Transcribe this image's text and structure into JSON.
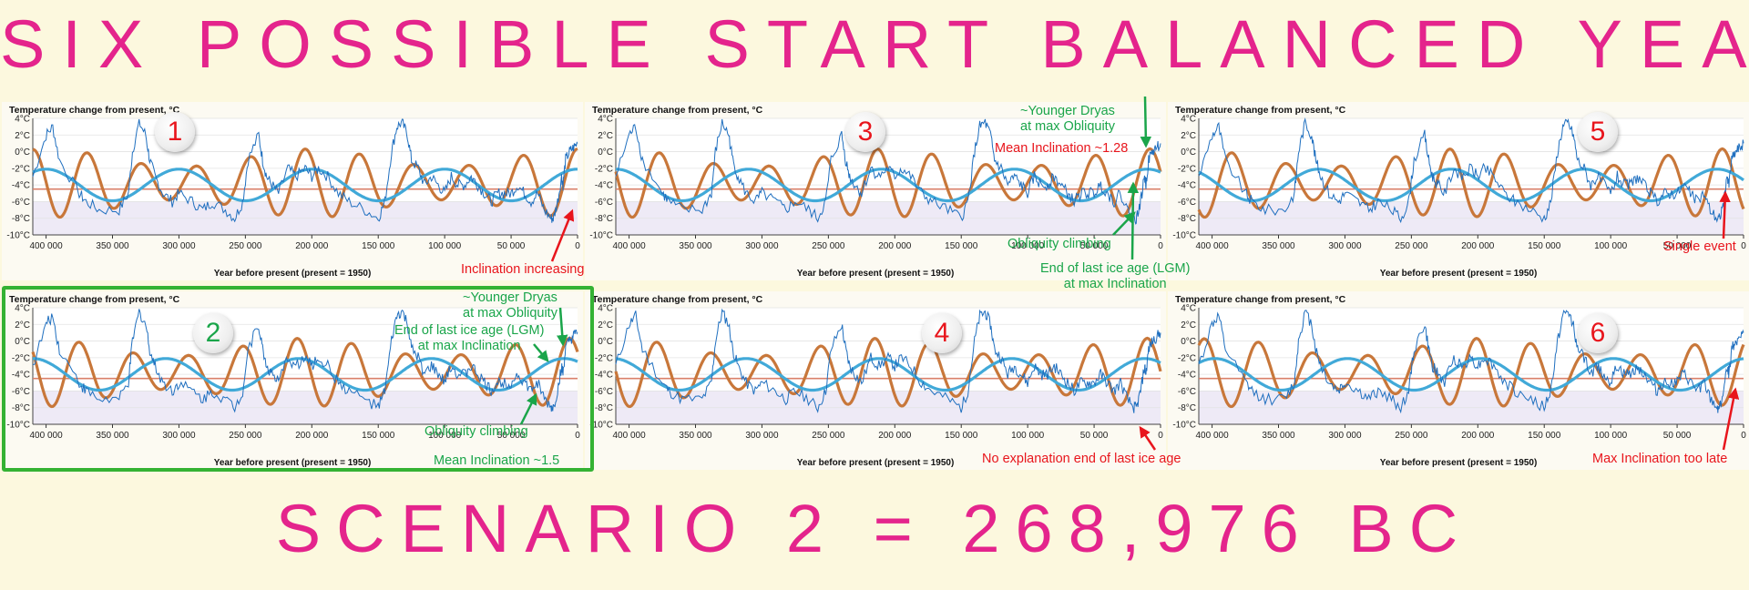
{
  "title": "SIX POSSIBLE START BALANCED YEAR",
  "subtitle": "SCENARIO 2 = 268,976 BC",
  "colors": {
    "headline": "#e4248c",
    "temperature": "#1f6fbf",
    "obliquity": "#41a9d8",
    "inclination": "#c8773a",
    "mean_line": "#d9806a",
    "highlight": "#34b233",
    "note_red": "#e8151c",
    "note_green": "#1aa54a"
  },
  "chart_data": [
    {
      "type": "line",
      "panel": 1,
      "badge": "1",
      "badge_color": "#e8151c",
      "title": "Temperature change from present, °C",
      "xlabel": "Year before present (present = 1950)",
      "xlim": [
        410000,
        0
      ],
      "ylim": [
        -10,
        4
      ],
      "x_ticks": [
        "400 000",
        "350 000",
        "300 000",
        "250 000",
        "200 000",
        "150 000",
        "100 000",
        "50 000",
        "0"
      ],
      "y_ticks": [
        "4°C",
        "2°C",
        "0°C",
        "-2°C",
        "-4°C",
        "-6°C",
        "-8°C",
        "-10°C"
      ],
      "obliquity_phase_years": 0,
      "inclination_phase_years": 0,
      "annotations": [
        {
          "text": "Inclination increasing",
          "color": "red"
        }
      ]
    },
    {
      "type": "line",
      "panel": 3,
      "badge": "3",
      "badge_color": "#e8151c",
      "title": "Temperature change from present, °C",
      "xlabel": "Year before present (present = 1950)",
      "xlim": [
        410000,
        0
      ],
      "ylim": [
        -10,
        4
      ],
      "x_ticks": [
        "400 000",
        "350 000",
        "300 000",
        "250 000",
        "200 000",
        "150 000",
        "100 000",
        "50 000",
        "0"
      ],
      "y_ticks": [
        "4°C",
        "2°C",
        "0°C",
        "-2°C",
        "-4°C",
        "-6°C",
        "-8°C",
        "-10°C"
      ],
      "obliquity_phase_years": 10000,
      "inclination_phase_years": 8000,
      "annotations": [
        {
          "text": "~Younger Dryas\nat max Obliquity",
          "color": "green"
        },
        {
          "text": "Mean Inclination ~1.28",
          "color": "red"
        },
        {
          "text": "Obliquity climbing",
          "color": "green"
        },
        {
          "text": "End of last ice age (LGM)\nat max Inclination",
          "color": "green"
        }
      ]
    },
    {
      "type": "line",
      "panel": 5,
      "badge": "5",
      "badge_color": "#e8151c",
      "title": "Temperature change from present, °C",
      "xlabel": "Year before present (present = 1950)",
      "xlim": [
        410000,
        0
      ],
      "ylim": [
        -10,
        4
      ],
      "x_ticks": [
        "400 000",
        "350 000",
        "300 000",
        "250 000",
        "200 000",
        "150 000",
        "100 000",
        "50 000",
        "0"
      ],
      "y_ticks": [
        "4°C",
        "2°C",
        "0°C",
        "-2°C",
        "-4°C",
        "-6°C",
        "-8°C",
        "-10°C"
      ],
      "obliquity_phase_years": 20000,
      "inclination_phase_years": 16000,
      "annotations": [
        {
          "text": "Single event",
          "color": "red"
        }
      ]
    },
    {
      "type": "line",
      "panel": 2,
      "badge": "2",
      "badge_color": "#1aa54a",
      "title": "Temperature change from present, °C",
      "xlabel": "Year before present (present = 1950)",
      "xlim": [
        410000,
        0
      ],
      "ylim": [
        -10,
        4
      ],
      "x_ticks": [
        "400 000",
        "350 000",
        "300 000",
        "250 000",
        "200 000",
        "150 000",
        "100 000",
        "50 000",
        "0"
      ],
      "y_ticks": [
        "4°C",
        "2°C",
        "0°C",
        "-2°C",
        "-4°C",
        "-6°C",
        "-8°C",
        "-10°C"
      ],
      "obliquity_phase_years": 10000,
      "inclination_phase_years": 6000,
      "annotations": [
        {
          "text": "~Younger Dryas\nat max Obliquity",
          "color": "green"
        },
        {
          "text": "End of last ice age (LGM)\nat max Inclination",
          "color": "green"
        },
        {
          "text": "Obliquity climbing",
          "color": "green"
        },
        {
          "text": "Mean Inclination ~1.5",
          "color": "green"
        }
      ]
    },
    {
      "type": "line",
      "panel": 4,
      "badge": "4",
      "badge_color": "#e8151c",
      "title": "Temperature change from present, °C",
      "xlabel": "Year before present (present = 1950)",
      "xlim": [
        410000,
        0
      ],
      "ylim": [
        -10,
        4
      ],
      "x_ticks": [
        "400 000",
        "350 000",
        "300 000",
        "250 000",
        "200 000",
        "150 000",
        "100 000",
        "50 000",
        "0"
      ],
      "y_ticks": [
        "4°C",
        "2°C",
        "0°C",
        "-2°C",
        "-4°C",
        "-6°C",
        "-8°C",
        "-10°C"
      ],
      "obliquity_phase_years": 12000,
      "inclination_phase_years": 10000,
      "annotations": [
        {
          "text": "No explanation end of last ice age",
          "color": "red"
        }
      ]
    },
    {
      "type": "line",
      "panel": 6,
      "badge": "6",
      "badge_color": "#e8151c",
      "title": "Temperature change from present, °C",
      "xlabel": "Year before present (present = 1950)",
      "xlim": [
        410000,
        0
      ],
      "ylim": [
        -10,
        4
      ],
      "x_ticks": [
        "400 000",
        "350 000",
        "300 000",
        "250 000",
        "200 000",
        "150 000",
        "100 000",
        "50 000",
        "0"
      ],
      "y_ticks": [
        "4°C",
        "2°C",
        "0°C",
        "-2°C",
        "-4°C",
        "-6°C",
        "-8°C",
        "-10°C"
      ],
      "obliquity_phase_years": -2000,
      "inclination_phase_years": -4000,
      "annotations": [
        {
          "text": "Max Inclination too late",
          "color": "red"
        }
      ]
    }
  ],
  "shared_series": {
    "temperature_anomaly_c": {
      "x": [
        410000,
        400000,
        395000,
        390000,
        375000,
        370000,
        360000,
        345000,
        338000,
        335000,
        330000,
        325000,
        322000,
        318000,
        312000,
        305000,
        300000,
        290000,
        282000,
        275000,
        265000,
        258000,
        252000,
        248000,
        240000,
        237000,
        234000,
        230000,
        225000,
        218000,
        212000,
        205000,
        200000,
        195000,
        188000,
        180000,
        172000,
        160000,
        150000,
        145000,
        140000,
        136000,
        132000,
        128000,
        125000,
        120000,
        115000,
        110000,
        105000,
        100000,
        95000,
        90000,
        85000,
        80000,
        75000,
        70000,
        65000,
        60000,
        55000,
        50000,
        45000,
        40000,
        35000,
        30000,
        25000,
        20000,
        18000,
        15000,
        12000,
        11000,
        9000,
        6000,
        3000,
        0
      ],
      "y": [
        -3,
        2,
        3,
        -1,
        -5,
        -6,
        -7,
        -7,
        -5,
        0,
        3.5,
        2,
        -1,
        -3,
        -5,
        -6,
        -5,
        -6,
        -7,
        -6,
        -7,
        -8,
        -6,
        -1,
        2,
        -1,
        -3,
        -4,
        -5,
        -2,
        -3,
        -2,
        -3,
        -2,
        -3,
        -5,
        -6,
        -7,
        -8,
        -6,
        0,
        3,
        3.5,
        2,
        -1,
        -2,
        -4,
        -3,
        -4,
        -5,
        -3,
        -4,
        -4,
        -3,
        -4,
        -5,
        -6,
        -5,
        -5,
        -5,
        -4,
        -5,
        -6,
        -5,
        -7,
        -8,
        -8,
        -6,
        -3,
        -4,
        -1,
        0,
        0.5,
        1
      ]
    }
  }
}
